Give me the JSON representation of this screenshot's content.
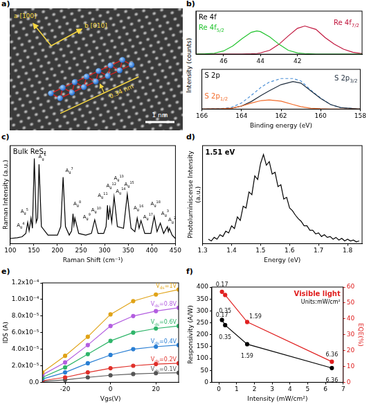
{
  "image_panel": {
    "panel": "a)",
    "directions": [
      "a [100]",
      "b [010]"
    ],
    "spacing": "0.34 nm",
    "scale_bar": "1 nm"
  },
  "chart_data": [
    {
      "panel": "b)",
      "type": "line",
      "title": "Re 4f",
      "ylabel": "Intensity (counts)",
      "x": [
        47.5,
        47,
        46.5,
        46,
        45.5,
        45,
        44.5,
        44.2,
        44,
        43.5,
        43,
        42.5,
        42,
        41.6,
        41,
        40.5,
        40,
        39.5,
        39,
        38.5
      ],
      "series": [
        {
          "name": "Re 4f5/2",
          "color": "#22c32e",
          "values": [
            0,
            0.01,
            0.03,
            0.1,
            0.25,
            0.47,
            0.66,
            0.7,
            0.68,
            0.52,
            0.3,
            0.12,
            0.04,
            0.02,
            0,
            0,
            0,
            0,
            0,
            0
          ]
        },
        {
          "name": "Re 4f7/2",
          "color": "#c0143c",
          "values": [
            0,
            0,
            0,
            0,
            0,
            0,
            0.01,
            0.02,
            0.04,
            0.12,
            0.3,
            0.55,
            0.78,
            0.85,
            0.75,
            0.5,
            0.3,
            0.15,
            0.06,
            0.02
          ]
        }
      ],
      "xlim": [
        47.5,
        38.5
      ],
      "xticks": [
        46,
        44,
        42
      ],
      "ylim": [
        0,
        1.3
      ],
      "tick_labels": "x",
      "grid": false
    },
    {
      "type": "line",
      "title": "S 2p",
      "xlabel": "Binding energy (eV)",
      "x": [
        166,
        165,
        164.5,
        164,
        163.5,
        163,
        162.6,
        162,
        161.4,
        161,
        160.5,
        160,
        159.5,
        159,
        158
      ],
      "series": [
        {
          "name": "S 2p1/2",
          "color": "#f26b2a",
          "values": [
            0,
            0.01,
            0.03,
            0.1,
            0.2,
            0.28,
            0.3,
            0.26,
            0.15,
            0.08,
            0.03,
            0.01,
            0,
            0,
            0
          ]
        },
        {
          "name": "S 2p3/2",
          "color": "#1f2d3d",
          "values": [
            0,
            0.01,
            0.03,
            0.1,
            0.25,
            0.45,
            0.6,
            0.8,
            0.9,
            0.85,
            0.6,
            0.35,
            0.15,
            0.05,
            0
          ]
        },
        {
          "color": "#4a8fd6",
          "line_style": "dashed",
          "values": [
            0,
            0.02,
            0.06,
            0.2,
            0.45,
            0.72,
            0.88,
            1.0,
            1.0,
            0.92,
            0.62,
            0.36,
            0.15,
            0.05,
            0
          ]
        }
      ],
      "xlim": [
        166,
        158
      ],
      "xticks": [
        166,
        164,
        162,
        160,
        158
      ],
      "ylim": [
        0,
        1.3
      ],
      "tick_labels": "x",
      "grid": false
    },
    {
      "panel": "c)",
      "type": "line",
      "title": "Bulk ReS₂",
      "xlabel": "Raman Shift (cm⁻¹)",
      "ylabel": "Raman Intensity (a.u.)",
      "x": [
        100,
        115,
        125,
        133,
        137,
        140,
        144,
        147,
        151,
        155,
        158,
        161,
        166,
        180,
        200,
        207,
        212,
        217,
        225,
        230,
        233,
        235,
        237,
        245,
        260,
        272,
        279,
        286,
        298,
        303,
        306,
        308,
        311,
        315,
        320,
        327,
        340,
        348,
        356,
        364,
        369,
        373,
        377,
        385,
        398,
        405,
        411,
        418,
        425,
        433,
        435,
        437,
        443,
        450
      ],
      "values": [
        0.06,
        0.07,
        0.08,
        0.12,
        0.25,
        0.15,
        0.3,
        0.18,
        1.0,
        0.25,
        0.3,
        0.93,
        0.2,
        0.1,
        0.1,
        0.2,
        0.78,
        0.2,
        0.1,
        0.15,
        0.35,
        0.22,
        0.3,
        0.12,
        0.1,
        0.12,
        0.28,
        0.12,
        0.12,
        0.2,
        0.45,
        0.28,
        0.42,
        0.25,
        0.55,
        0.2,
        0.18,
        0.58,
        0.18,
        0.14,
        0.3,
        0.18,
        0.27,
        0.12,
        0.12,
        0.32,
        0.14,
        0.24,
        0.12,
        0.2,
        0.14,
        0.18,
        0.1,
        0.06
      ],
      "color": "#000000",
      "annotations": [
        {
          "text": "Ag4",
          "x": 122,
          "y": 0.2
        },
        {
          "text": "Ag5",
          "x": 130,
          "y": 0.36
        },
        {
          "text": "Ag6",
          "x": 168,
          "y": 1.0
        },
        {
          "text": "Ag7",
          "x": 225,
          "y": 0.84
        },
        {
          "text": "Ag8",
          "x": 242,
          "y": 0.45
        },
        {
          "text": "Ag9",
          "x": 262,
          "y": 0.3
        },
        {
          "text": "Ag10",
          "x": 282,
          "y": 0.38
        },
        {
          "text": "Ag11",
          "x": 296,
          "y": 0.55
        },
        {
          "text": "Ag12",
          "x": 314,
          "y": 0.66
        },
        {
          "text": "Ag13",
          "x": 330,
          "y": 0.75
        },
        {
          "text": "Ag14",
          "x": 334,
          "y": 0.6
        },
        {
          "text": "Ag15",
          "x": 352,
          "y": 0.68
        },
        {
          "text": "Ag16",
          "x": 372,
          "y": 0.4
        },
        {
          "text": "Ag17",
          "x": 392,
          "y": 0.3
        },
        {
          "text": "Ag18",
          "x": 408,
          "y": 0.45
        },
        {
          "text": "Ag3",
          "x": 428,
          "y": 0.34
        },
        {
          "text": "Ag2",
          "x": 443,
          "y": 0.26
        }
      ],
      "xlim": [
        100,
        450
      ],
      "xticks": [
        100,
        150,
        200,
        250,
        300,
        350,
        400,
        450
      ],
      "ylim": [
        0,
        1.15
      ],
      "tick_labels": "x",
      "grid": false
    },
    {
      "panel": "d)",
      "type": "line",
      "xlabel": "Energy (eV)",
      "ylabel": "Photoluminiscense Intensity (a.u.)",
      "x": [
        1.32,
        1.33,
        1.34,
        1.35,
        1.36,
        1.37,
        1.38,
        1.39,
        1.4,
        1.41,
        1.42,
        1.43,
        1.44,
        1.45,
        1.46,
        1.47,
        1.48,
        1.49,
        1.5,
        1.51,
        1.52,
        1.53,
        1.54,
        1.55,
        1.56,
        1.57,
        1.58,
        1.59,
        1.6,
        1.61,
        1.62,
        1.63,
        1.64,
        1.65,
        1.66,
        1.67,
        1.68,
        1.69,
        1.7,
        1.71,
        1.72,
        1.73,
        1.74,
        1.75,
        1.76,
        1.77,
        1.78,
        1.79,
        1.8,
        1.81,
        1.82,
        1.83,
        1.84
      ],
      "values": [
        0.05,
        0.03,
        0.07,
        0.05,
        0.1,
        0.08,
        0.14,
        0.12,
        0.2,
        0.17,
        0.3,
        0.26,
        0.42,
        0.4,
        0.58,
        0.55,
        0.76,
        0.72,
        0.9,
        1.0,
        0.88,
        0.92,
        0.78,
        0.8,
        0.64,
        0.66,
        0.5,
        0.52,
        0.4,
        0.37,
        0.32,
        0.28,
        0.25,
        0.2,
        0.2,
        0.15,
        0.15,
        0.11,
        0.12,
        0.08,
        0.1,
        0.07,
        0.08,
        0.05,
        0.07,
        0.04,
        0.06,
        0.03,
        0.05,
        0.03,
        0.04,
        0.02,
        0.03
      ],
      "color": "#000000",
      "annotations": [
        {
          "text": "1.51 eV"
        }
      ],
      "xlim": [
        1.3,
        1.85
      ],
      "xticks": [
        1.3,
        1.4,
        1.5,
        1.6,
        1.7,
        1.8
      ],
      "ylim": [
        0,
        1.1
      ],
      "tick_labels": "x",
      "grid": false
    },
    {
      "panel": "e)",
      "type": "line",
      "xlabel": "Vgs(V)",
      "ylabel": "IDS (A)",
      "x": [
        -30,
        -20,
        -10,
        0,
        10,
        20,
        30
      ],
      "series": [
        {
          "name": "Vds=1V",
          "color": "#e0a317",
          "marker": "circle",
          "values": [
            1.2e-05,
            3.2e-05,
            5.5e-05,
            8.2e-05,
            9.8e-05,
            0.000106,
            0.000112
          ]
        },
        {
          "name": "Vds=0.8V",
          "color": "#b35ee0",
          "marker": "circle",
          "values": [
            9e-06,
            2.4e-05,
            4.5e-05,
            6.8e-05,
            8e-05,
            8.6e-05,
            9e-05
          ]
        },
        {
          "name": "Vds=0.6V",
          "color": "#2fb56a",
          "marker": "circle",
          "values": [
            6e-06,
            1.8e-05,
            3.4e-05,
            5e-05,
            6e-05,
            6.5e-05,
            6.8e-05
          ]
        },
        {
          "name": "Vds=0.4V",
          "color": "#2a7fd4",
          "marker": "circle",
          "values": [
            4e-06,
            1.2e-05,
            2.3e-05,
            3.3e-05,
            4e-05,
            4.3e-05,
            4.5e-05
          ]
        },
        {
          "name": "Vds=0.2V",
          "color": "#e0302a",
          "marker": "circle",
          "values": [
            2e-06,
            6e-06,
            1.2e-05,
            1.7e-05,
            2e-05,
            2.2e-05,
            2.3e-05
          ]
        },
        {
          "name": "Vds=0.1V",
          "color": "#555555",
          "marker": "circle",
          "values": [
            1e-06,
            3e-06,
            6e-06,
            8.5e-06,
            1e-05,
            1.1e-05,
            1.15e-05
          ]
        }
      ],
      "xlim": [
        -30,
        30
      ],
      "xticks": [
        -20,
        0,
        20
      ],
      "ylim": [
        0,
        0.00012
      ],
      "yticks": [
        {
          "value": 0,
          "label": "0.0"
        },
        {
          "value": 2e-05,
          "label": "2.0x10⁻⁵"
        },
        {
          "value": 4e-05,
          "label": "4.0x10⁻⁵"
        },
        {
          "value": 6e-05,
          "label": "6.0x10⁻⁵"
        },
        {
          "value": 8e-05,
          "label": "8.0x10⁻⁵"
        },
        {
          "value": 0.0001,
          "label": "1.0x10⁻⁴"
        },
        {
          "value": 0.00012,
          "label": "1.2x10⁻⁴"
        }
      ],
      "grid": false
    },
    {
      "panel": "f)",
      "type": "line",
      "xlabel": "Intensity (mW/cm²)",
      "ylabel": "Responsivity (A/W)",
      "y2label": "EQE(%)",
      "x": [
        0.17,
        0.35,
        1.59,
        6.36
      ],
      "series": [
        {
          "color": "#000000",
          "marker": "circle",
          "data_labels": true,
          "values": [
            262,
            240,
            160,
            60
          ]
        },
        {
          "color": "#e02020",
          "marker": "circle",
          "data_labels": true,
          "axis": "y2",
          "values": [
            57,
            55,
            38,
            13
          ]
        }
      ],
      "annotations": [
        {
          "text": "Visible light",
          "color": "#e02020"
        },
        {
          "text": "Units:mW/cm²",
          "color": "#000000"
        }
      ],
      "xlim": [
        -0.4,
        7
      ],
      "xticks": [
        0,
        1,
        2,
        3,
        4,
        5,
        6,
        7
      ],
      "ylim": [
        0,
        400
      ],
      "yticks": [
        0,
        50,
        100,
        150,
        200,
        250,
        300,
        350,
        400
      ],
      "y2lim": [
        0,
        60
      ],
      "y2ticks": [
        0,
        10,
        20,
        30,
        40,
        50,
        60
      ],
      "grid": false
    }
  ]
}
